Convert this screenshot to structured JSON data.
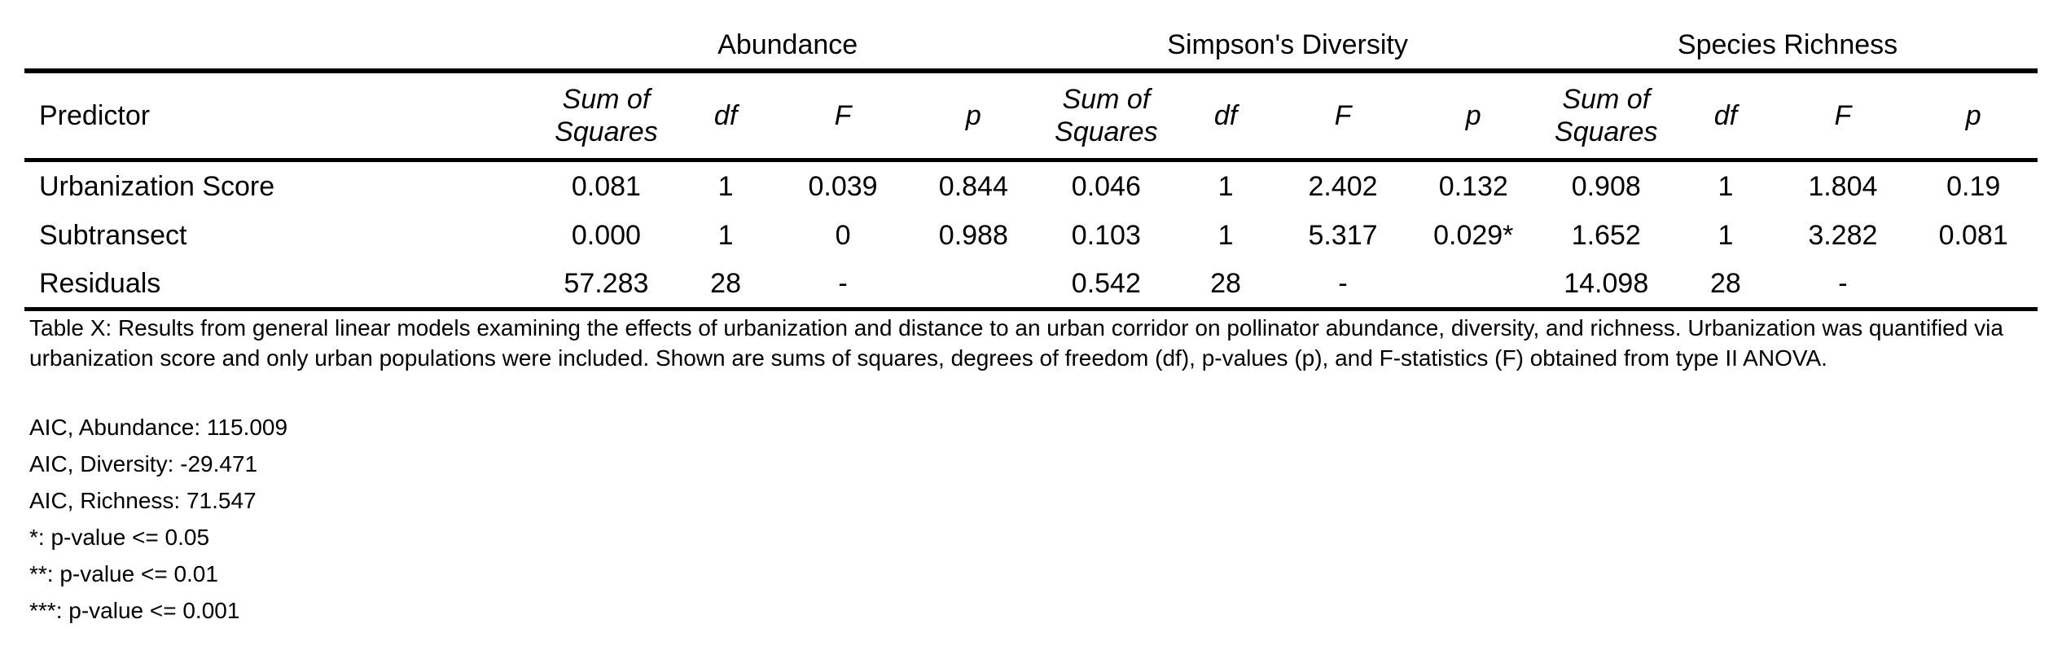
{
  "table": {
    "groups": {
      "abundance": "Abundance",
      "diversity": "Simpson's Diversity",
      "richness": "Species Richness"
    },
    "headers": {
      "predictor": "Predictor",
      "sum_of_squares_line1": "Sum of",
      "sum_of_squares_line2": "Squares",
      "df": "df",
      "f": "F",
      "p": "p"
    },
    "rows": [
      {
        "predictor": "Urbanization Score",
        "abundance": {
          "ss": "0.081",
          "df": "1",
          "f": "0.039",
          "p": "0.844"
        },
        "diversity": {
          "ss": "0.046",
          "df": "1",
          "f": "2.402",
          "p": "0.132"
        },
        "richness": {
          "ss": "0.908",
          "df": "1",
          "f": "1.804",
          "p": "0.19"
        }
      },
      {
        "predictor": "Subtransect",
        "abundance": {
          "ss": "0.000",
          "df": "1",
          "f": "0",
          "p": "0.988"
        },
        "diversity": {
          "ss": "0.103",
          "df": "1",
          "f": "5.317",
          "p": "0.029*"
        },
        "richness": {
          "ss": "1.652",
          "df": "1",
          "f": "3.282",
          "p": "0.081"
        }
      },
      {
        "predictor": "Residuals",
        "abundance": {
          "ss": "57.283",
          "df": "28",
          "f": "-",
          "p": ""
        },
        "diversity": {
          "ss": "0.542",
          "df": "28",
          "f": "-",
          "p": ""
        },
        "richness": {
          "ss": "14.098",
          "df": "28",
          "f": "-",
          "p": ""
        }
      }
    ]
  },
  "caption": "Table X: Results from general linear models examining the effects of urbanization and distance to an urban corridor on pollinator abundance, diversity, and richness. Urbanization was quantified via urbanization score and only urban populations were included. Shown are sums of squares, degrees of freedom (df), p-values (p), and F-statistics (F) obtained from type II ANOVA.",
  "notes": [
    "AIC, Abundance: 115.009",
    "AIC, Diversity: -29.471",
    "AIC, Richness: 71.547",
    "*: p-value <= 0.05",
    "**: p-value <= 0.01",
    "***: p-value <= 0.001"
  ]
}
